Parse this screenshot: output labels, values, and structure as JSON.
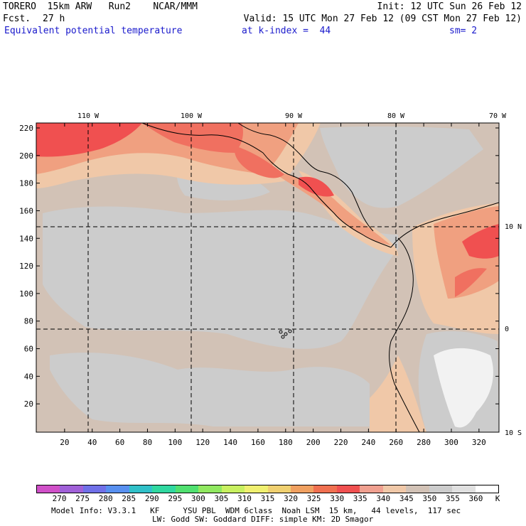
{
  "header": {
    "model": "TORERO  15km ARW   Run2    NCAR/MMM",
    "init": "Init: 12 UTC Sun 26 Feb 12",
    "fcst_label": "Fcst.",
    "fcst_value": "27 h",
    "valid": "Valid: 15 UTC Mon 27 Feb 12 (09 CST Mon 27 Feb 12)",
    "field": "Equivalent potential temperature",
    "level": "at k-index =  44",
    "smoothing": "sm= 2"
  },
  "map": {
    "top_lon_labels": [
      "110 W",
      "100 W",
      "90 W",
      "80 W",
      "70 W"
    ],
    "right_lat_labels": [
      "10 N",
      "0",
      "10 S"
    ],
    "y_ticks": [
      "220",
      "200",
      "180",
      "160",
      "140",
      "120",
      "100",
      "80",
      "60",
      "40",
      "20"
    ],
    "x_ticks": [
      "20",
      "40",
      "60",
      "80",
      "100",
      "120",
      "140",
      "160",
      "180",
      "200",
      "220",
      "240",
      "260",
      "280",
      "300",
      "320"
    ],
    "colors": {
      "gray": "#cccccc",
      "tan": "#d2c2b6",
      "peach": "#f0c8a8",
      "salmon": "#f0a080",
      "red_orange": "#f07060",
      "red": "#f05050",
      "white": "#f2f2f2"
    }
  },
  "colorbar": {
    "labels": [
      "270",
      "275",
      "280",
      "285",
      "290",
      "295",
      "300",
      "305",
      "310",
      "315",
      "320",
      "325",
      "330",
      "335",
      "340",
      "345",
      "350",
      "355",
      "360"
    ],
    "unit": "K",
    "colors": [
      "#d050c8",
      "#a060d8",
      "#7070e8",
      "#5890f0",
      "#30c0c8",
      "#30d8a0",
      "#50e070",
      "#90e860",
      "#c8f060",
      "#f0f070",
      "#f0d070",
      "#f0a060",
      "#f07050",
      "#f05050",
      "#f0a090",
      "#f0c8a8",
      "#d2c2b6",
      "#cccccc",
      "#e0e0e0",
      "#ffffff"
    ]
  },
  "footer": {
    "line1": "Model Info: V3.3.1   KF     YSU PBL  WDM 6class  Noah LSM  15 km,   44 levels,  117 sec",
    "line2": "LW: Godd SW: Goddard DIFF: simple KM: 2D Smagor"
  }
}
